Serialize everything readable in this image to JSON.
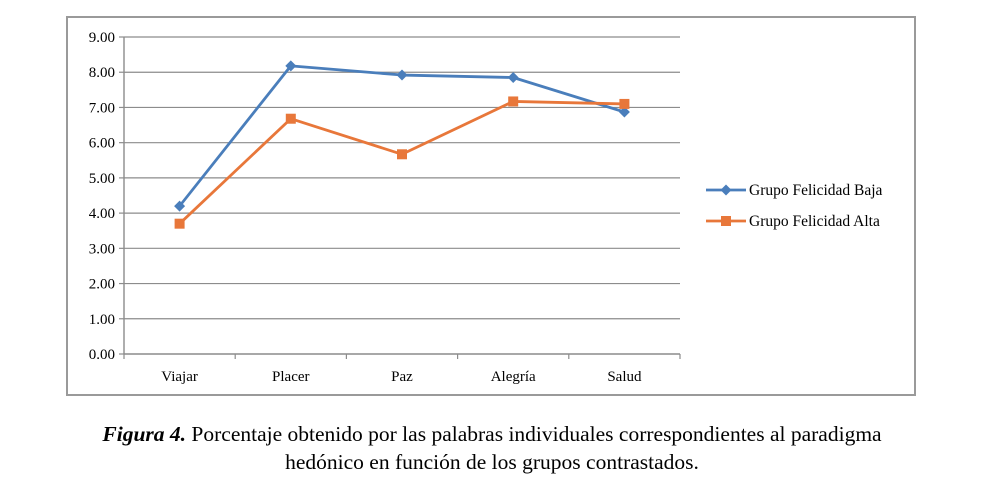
{
  "chart_data": {
    "type": "line",
    "categories": [
      "Viajar",
      "Placer",
      "Paz",
      "Alegría",
      "Salud"
    ],
    "ylim": [
      0,
      9
    ],
    "yticks": [
      "0.00",
      "1.00",
      "2.00",
      "3.00",
      "4.00",
      "5.00",
      "6.00",
      "7.00",
      "8.00",
      "9.00"
    ],
    "grid": true,
    "legend_position": "right",
    "series": [
      {
        "name": "Grupo Felicidad Baja",
        "values": [
          4.2,
          8.18,
          7.92,
          7.85,
          6.87
        ],
        "color": "#4a7ebb",
        "marker": "diamond"
      },
      {
        "name": "Grupo Felicidad Alta",
        "values": [
          3.7,
          6.68,
          5.67,
          7.17,
          7.1
        ],
        "color": "#e8773a",
        "marker": "square"
      }
    ]
  },
  "caption": {
    "label": "Figura 4.",
    "line1": " Porcentaje obtenido por las palabras individuales correspondientes al paradigma",
    "line2": "hedónico en función de los grupos contrastados."
  }
}
